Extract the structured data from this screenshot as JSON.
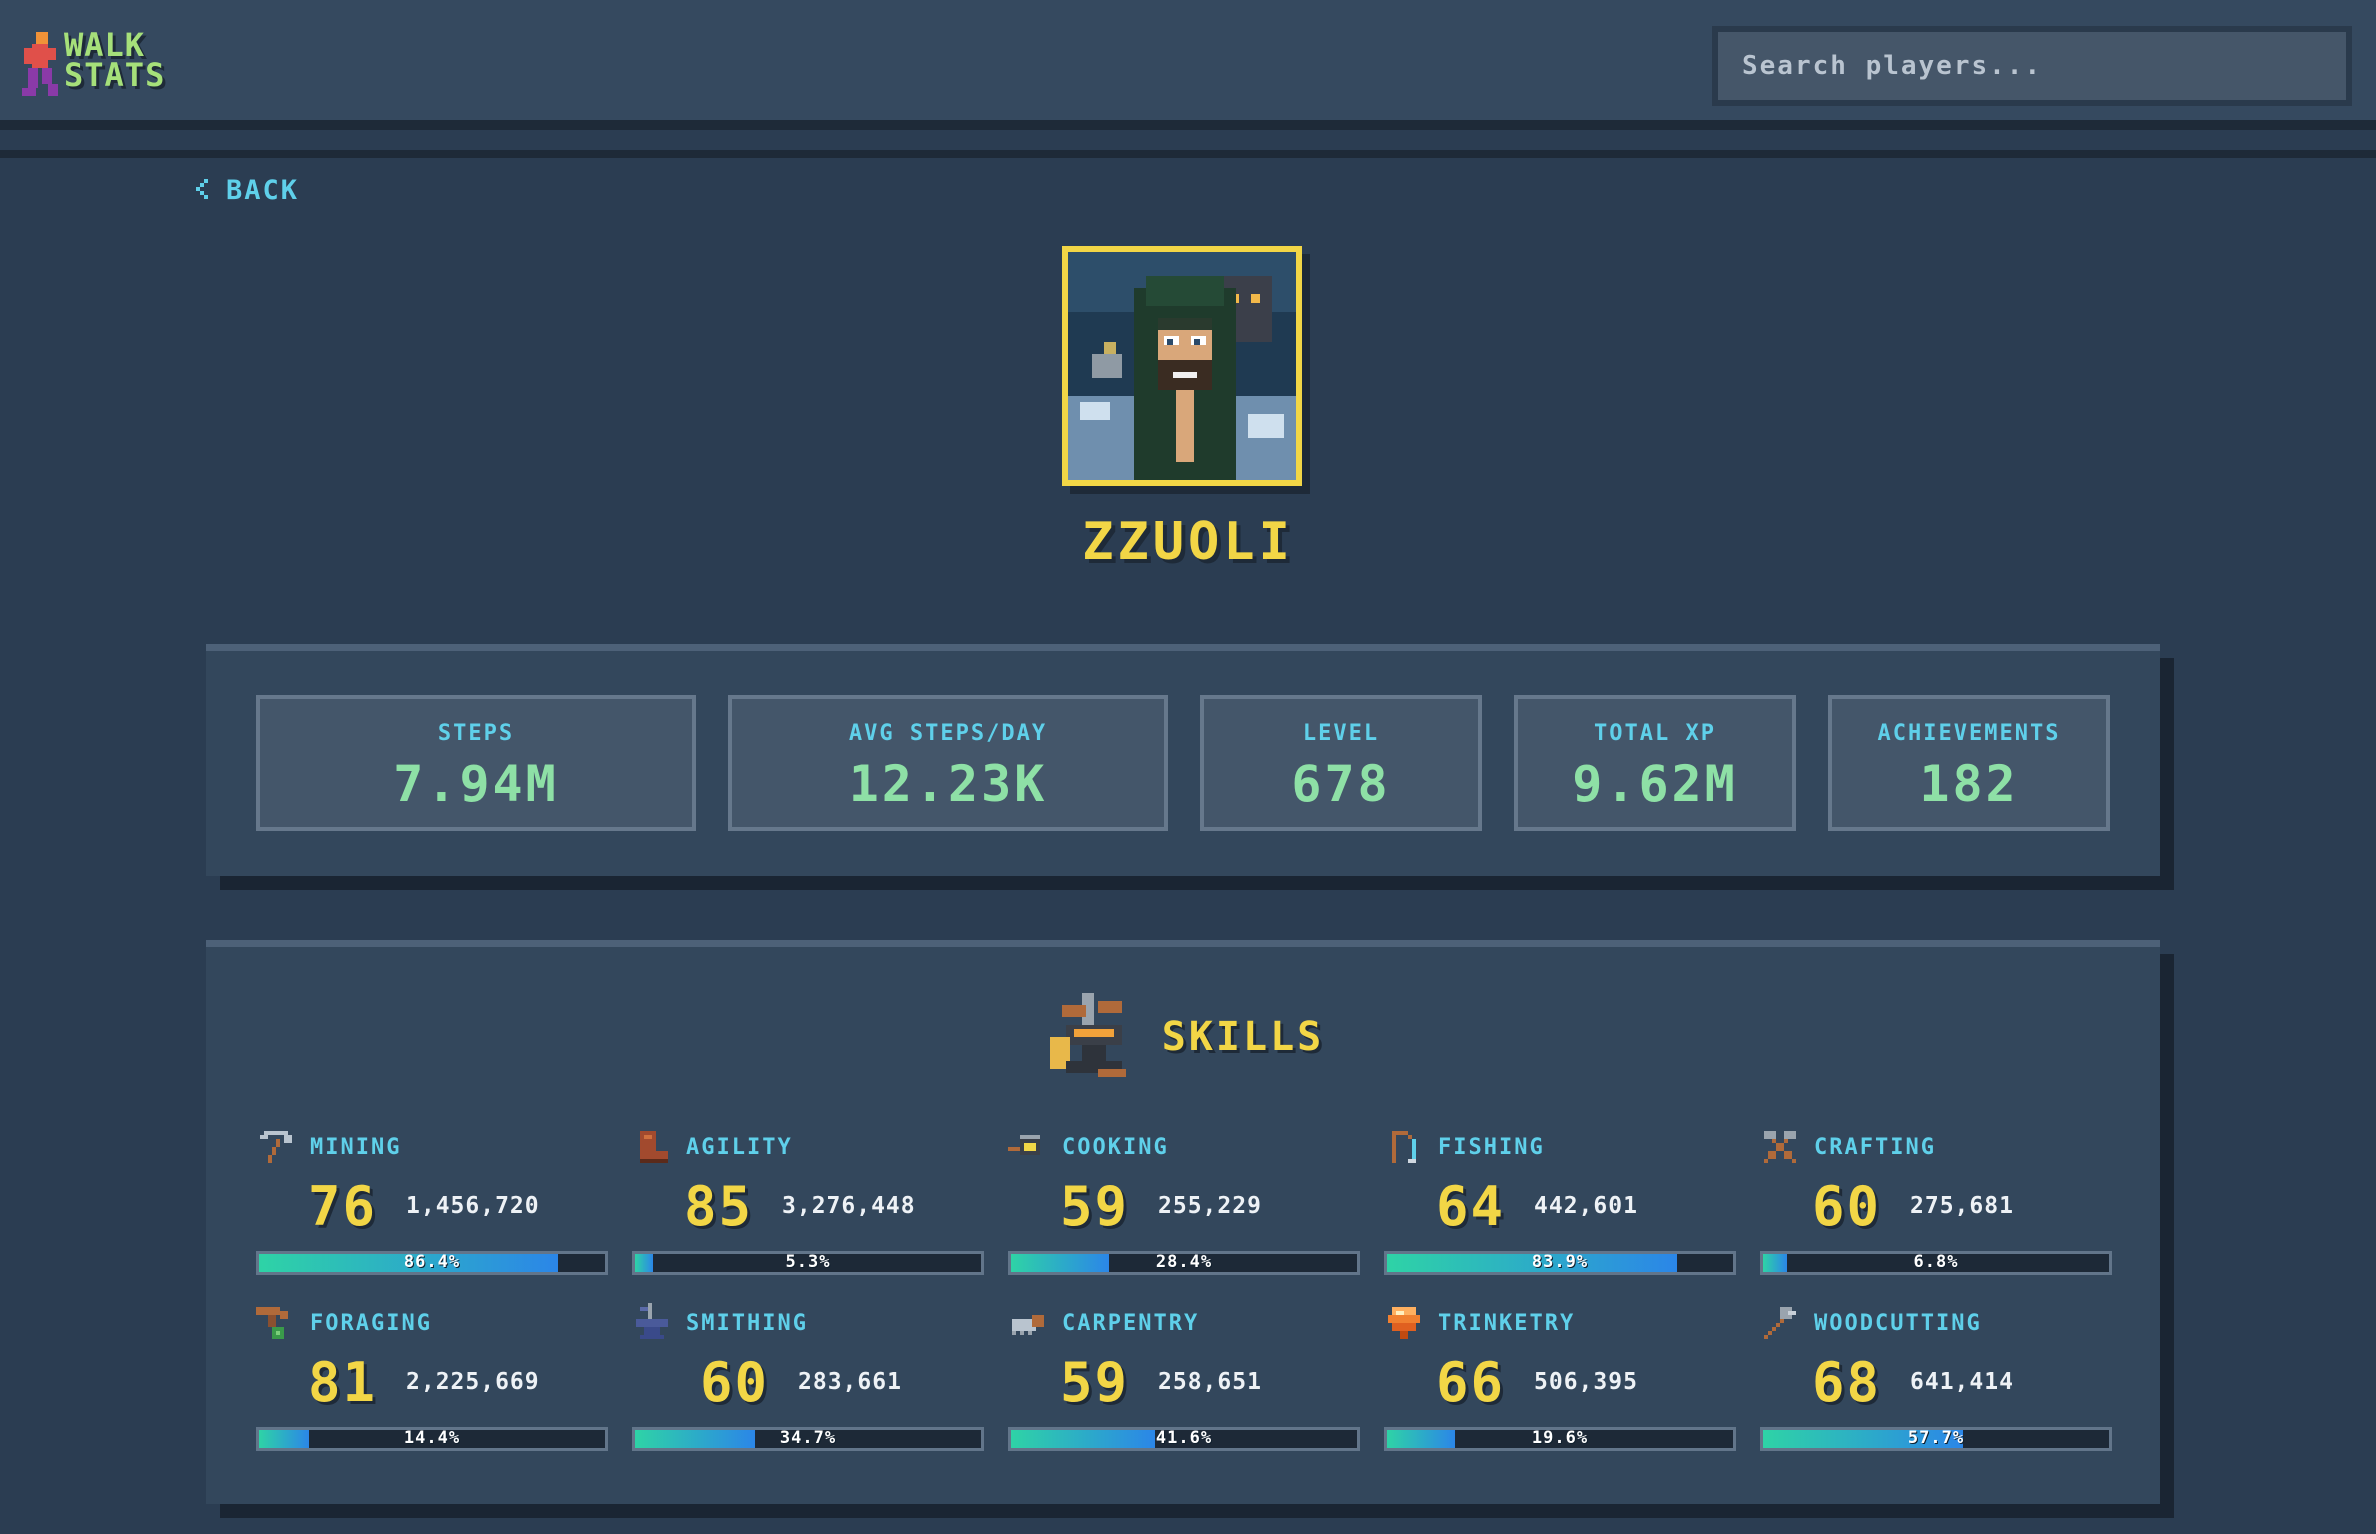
{
  "header": {
    "logo_line1": "WALK",
    "logo_line2": "STATS",
    "search_placeholder": "Search players..."
  },
  "nav": {
    "back_label": "BACK",
    "back_icon": "chevron-left-icon"
  },
  "profile": {
    "name": "ZZUOLI",
    "avatar": "player-avatar-portrait"
  },
  "stats": [
    {
      "label": "STEPS",
      "value": "7.94M"
    },
    {
      "label": "AVG STEPS/DAY",
      "value": "12.23K"
    },
    {
      "label": "LEVEL",
      "value": "678"
    },
    {
      "label": "TOTAL XP",
      "value": "9.62M"
    },
    {
      "label": "ACHIEVEMENTS",
      "value": "182"
    }
  ],
  "skills_section": {
    "title": "SKILLS",
    "icon": "anvil-icon"
  },
  "skills": [
    {
      "name": "MINING",
      "icon": "pickaxe-icon",
      "level": "76",
      "xp": "1,456,720",
      "progress": 86.4,
      "progress_label": "86.4%"
    },
    {
      "name": "AGILITY",
      "icon": "boot-icon",
      "level": "85",
      "xp": "3,276,448",
      "progress": 5.3,
      "progress_label": "5.3%"
    },
    {
      "name": "COOKING",
      "icon": "frying-pan-icon",
      "level": "59",
      "xp": "255,229",
      "progress": 28.4,
      "progress_label": "28.4%"
    },
    {
      "name": "FISHING",
      "icon": "fishing-rod-icon",
      "level": "64",
      "xp": "442,601",
      "progress": 83.9,
      "progress_label": "83.9%"
    },
    {
      "name": "CRAFTING",
      "icon": "crossed-tools-icon",
      "level": "60",
      "xp": "275,681",
      "progress": 6.8,
      "progress_label": "6.8%"
    },
    {
      "name": "FORAGING",
      "icon": "shovel-icon",
      "level": "81",
      "xp": "2,225,669",
      "progress": 14.4,
      "progress_label": "14.4%"
    },
    {
      "name": "SMITHING",
      "icon": "anvil-small-icon",
      "level": "60",
      "xp": "283,661",
      "progress": 34.7,
      "progress_label": "34.7%"
    },
    {
      "name": "CARPENTRY",
      "icon": "saw-icon",
      "level": "59",
      "xp": "258,651",
      "progress": 41.6,
      "progress_label": "41.6%"
    },
    {
      "name": "TRINKETRY",
      "icon": "gem-icon",
      "level": "66",
      "xp": "506,395",
      "progress": 19.6,
      "progress_label": "19.6%"
    },
    {
      "name": "WOODCUTTING",
      "icon": "axe-icon",
      "level": "68",
      "xp": "641,414",
      "progress": 57.7,
      "progress_label": "57.7%"
    }
  ],
  "colors": {
    "accent_yellow": "#f2d646",
    "accent_cyan": "#5fd0ea",
    "stat_green": "#8ee0a6",
    "bar_gradient_start": "#2ed3a6",
    "bar_gradient_end": "#2b86e8"
  }
}
